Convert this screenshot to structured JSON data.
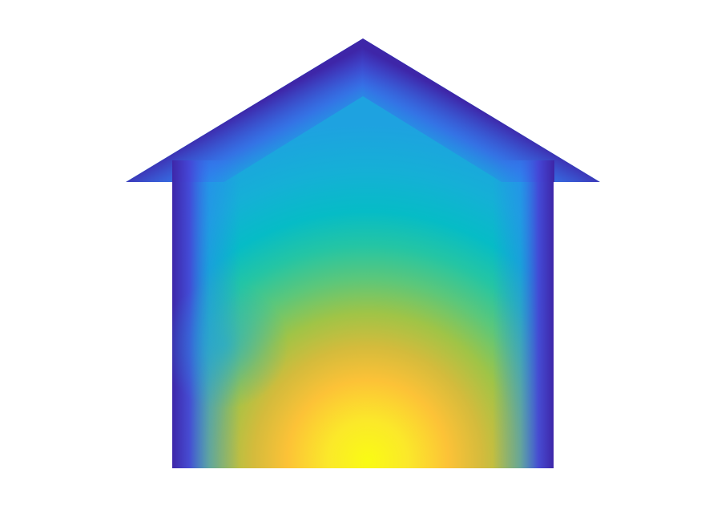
{
  "figure": {
    "background": "#ffffff",
    "shape": "house",
    "colormap": "parula",
    "colormap_stops": [
      "#3e26a8",
      "#4354e8",
      "#2f80f3",
      "#1aa6dd",
      "#00bcc6",
      "#2ec891",
      "#8bc64d",
      "#e1b93a",
      "#fcd32f",
      "#f9fb14"
    ],
    "hot_spot": "bottom-center",
    "cold_regions": [
      "roof-edges",
      "left-wall",
      "right-wall"
    ]
  }
}
